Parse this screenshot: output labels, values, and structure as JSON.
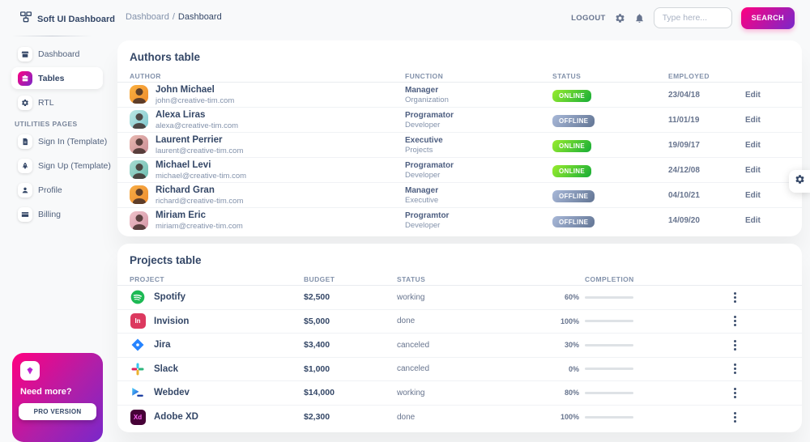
{
  "app": {
    "brand": "Soft UI Dashboard"
  },
  "topbar": {
    "breadcrumb": {
      "root": "Dashboard",
      "separator": "/",
      "current": "Dashboard"
    },
    "logout_label": "LOGOUT",
    "icons": [
      "gear-icon",
      "bell-icon"
    ],
    "search": {
      "placeholder": "Type here...",
      "button_label": "SEARCH"
    }
  },
  "sidebar": {
    "nav": [
      {
        "label": "Dashboard",
        "icon": "shop-icon",
        "active": false
      },
      {
        "label": "Tables",
        "icon": "briefcase-icon",
        "active": true
      },
      {
        "label": "RTL",
        "icon": "settings-icon",
        "active": false
      }
    ],
    "section_label": "UTILITIES PAGES",
    "utilities": [
      {
        "label": "Sign In (Template)",
        "icon": "document-icon"
      },
      {
        "label": "Sign Up (Template)",
        "icon": "rocket-icon"
      },
      {
        "label": "Profile",
        "icon": "user-icon"
      },
      {
        "label": "Billing",
        "icon": "credit-card-icon"
      }
    ],
    "promo": {
      "icon": "gem-icon",
      "title": "Need more?",
      "button_label": "PRO VERSION"
    }
  },
  "authors_table": {
    "title": "Authors table",
    "columns": [
      "AUTHOR",
      "FUNCTION",
      "STATUS",
      "EMPLOYED"
    ],
    "rows": [
      {
        "name": "John Michael",
        "email": "john@creative-tim.com",
        "function": "Manager",
        "department": "Organization",
        "status": "ONLINE",
        "employed": "23/04/18",
        "action": "Edit",
        "avatar_colors": [
          "#fbb140",
          "#ee8b2c"
        ]
      },
      {
        "name": "Alexa Liras",
        "email": "alexa@creative-tim.com",
        "function": "Programator",
        "department": "Developer",
        "status": "OFFLINE",
        "employed": "11/01/19",
        "action": "Edit",
        "avatar_colors": [
          "#bde8e4",
          "#7cc6cd"
        ]
      },
      {
        "name": "Laurent Perrier",
        "email": "laurent@creative-tim.com",
        "function": "Executive",
        "department": "Projects",
        "status": "ONLINE",
        "employed": "19/09/17",
        "action": "Edit",
        "avatar_colors": [
          "#e9b8b0",
          "#c98d95"
        ]
      },
      {
        "name": "Michael Levi",
        "email": "michael@creative-tim.com",
        "function": "Programator",
        "department": "Developer",
        "status": "ONLINE",
        "employed": "24/12/08",
        "action": "Edit",
        "avatar_colors": [
          "#a8dcd2",
          "#6bbcae"
        ]
      },
      {
        "name": "Richard Gran",
        "email": "richard@creative-tim.com",
        "function": "Manager",
        "department": "Executive",
        "status": "OFFLINE",
        "employed": "04/10/21",
        "action": "Edit",
        "avatar_colors": [
          "#f7ad45",
          "#ef8d2f"
        ]
      },
      {
        "name": "Miriam Eric",
        "email": "miriam@creative-tim.com",
        "function": "Programtor",
        "department": "Developer",
        "status": "OFFLINE",
        "employed": "14/09/20",
        "action": "Edit",
        "avatar_colors": [
          "#efc3ca",
          "#d393a4"
        ]
      }
    ]
  },
  "projects_table": {
    "title": "Projects table",
    "columns": [
      "PROJECT",
      "BUDGET",
      "STATUS",
      "COMPLETION"
    ],
    "rows": [
      {
        "project": "Spotify",
        "icon": "spotify-icon",
        "budget": "$2,500",
        "status": "working",
        "completion": 60,
        "completion_label": "60%",
        "bar_variant": "info"
      },
      {
        "project": "Invision",
        "icon": "invision-icon",
        "budget": "$5,000",
        "status": "done",
        "completion": 100,
        "completion_label": "100%",
        "bar_variant": "success"
      },
      {
        "project": "Jira",
        "icon": "jira-icon",
        "budget": "$3,400",
        "status": "canceled",
        "completion": 30,
        "completion_label": "30%",
        "bar_variant": "danger"
      },
      {
        "project": "Slack",
        "icon": "slack-icon",
        "budget": "$1,000",
        "status": "canceled",
        "completion": 0,
        "completion_label": "0%",
        "bar_variant": "none"
      },
      {
        "project": "Webdev",
        "icon": "webdev-icon",
        "budget": "$14,000",
        "status": "working",
        "completion": 80,
        "completion_label": "80%",
        "bar_variant": "info"
      },
      {
        "project": "Adobe XD",
        "icon": "adobe-xd-icon",
        "budget": "$2,300",
        "status": "done",
        "completion": 100,
        "completion_label": "100%",
        "bar_variant": "success"
      }
    ],
    "brand_abbrev": {
      "invision": "In",
      "adobe_xd": "Xd"
    }
  },
  "fab": {
    "icon": "gear-icon"
  },
  "colors": {
    "background": "#f8f9fa",
    "card": "#ffffff",
    "text_dark": "#344767",
    "text_secondary": "#67748e",
    "text_muted": "#8392ab",
    "accent_gradient": [
      "#ff0080",
      "#7928ca"
    ],
    "badge_online": [
      "#98ec2d",
      "#17ad37"
    ],
    "badge_offline": [
      "#a8b8d8",
      "#627594"
    ],
    "bar_info": [
      "#21d4fd",
      "#2152ff"
    ],
    "bar_success": [
      "#98ec2d",
      "#17ad37"
    ],
    "bar_danger": [
      "#ff667c",
      "#ea0606"
    ],
    "spotify_green": "#1db954",
    "invision_red": "#dc395f",
    "jira_blue": "#2684ff",
    "xd_bg": "#470137",
    "xd_text": "#ff61f6"
  }
}
